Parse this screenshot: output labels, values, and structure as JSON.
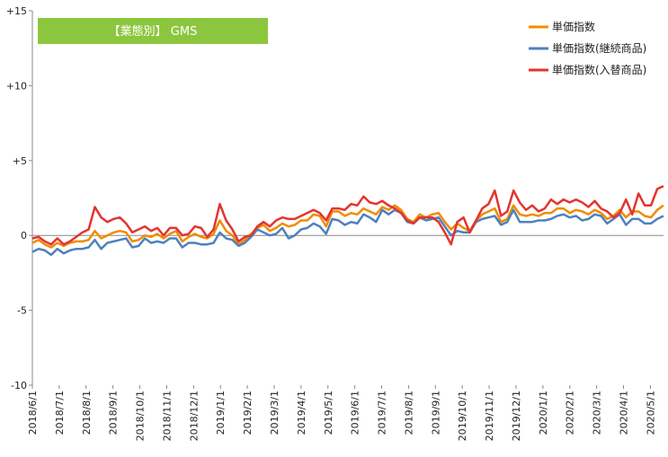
{
  "chart_data": {
    "type": "line",
    "title": "【業態別】 GMS",
    "xlabel": "",
    "ylabel": "",
    "ylim": [
      -10,
      15
    ],
    "yticks": [
      -10,
      -5,
      0,
      5,
      10,
      15
    ],
    "ytick_labels": [
      "-10",
      "-5",
      "0",
      "+5",
      "+10",
      "+15"
    ],
    "xtick_labels": [
      "2018/6/1",
      "2018/7/1",
      "2018/8/1",
      "2018/9/1",
      "2018/10/1",
      "2018/11/1",
      "2018/12/1",
      "2019/1/1",
      "2019/2/1",
      "2019/3/1",
      "2019/4/1",
      "2019/5/1",
      "2019/6/1",
      "2019/7/1",
      "2019/8/1",
      "2019/9/1",
      "2019/10/1",
      "2019/11/1",
      "2019/12/1",
      "2020/1/1",
      "2020/2/1",
      "2020/3/1",
      "2020/4/1",
      "2020/5/1"
    ],
    "points_per_month": 4.3,
    "grid": false,
    "legend_position": "top-right",
    "title_box_color": "#8cc63f",
    "series": [
      {
        "name": "単価指数",
        "color": "#f08c00",
        "values": [
          -0.5,
          -0.3,
          -0.6,
          -0.8,
          -0.5,
          -0.7,
          -0.5,
          -0.4,
          -0.4,
          -0.3,
          0.3,
          -0.2,
          0.0,
          0.2,
          0.3,
          0.2,
          -0.4,
          -0.3,
          0.0,
          -0.1,
          0.1,
          -0.2,
          0.1,
          0.3,
          -0.4,
          -0.1,
          0.1,
          -0.1,
          -0.2,
          0.1,
          1.0,
          0.3,
          0.0,
          -0.6,
          -0.3,
          0.1,
          0.5,
          0.7,
          0.3,
          0.5,
          0.8,
          0.6,
          0.7,
          1.0,
          1.0,
          1.4,
          1.3,
          0.6,
          1.6,
          1.6,
          1.3,
          1.5,
          1.4,
          1.8,
          1.6,
          1.4,
          1.9,
          1.7,
          2.0,
          1.7,
          1.1,
          0.9,
          1.4,
          1.2,
          1.4,
          1.5,
          0.9,
          0.4,
          0.8,
          0.5,
          0.3,
          1.0,
          1.4,
          1.6,
          1.8,
          0.9,
          1.1,
          2.0,
          1.4,
          1.3,
          1.4,
          1.3,
          1.5,
          1.5,
          1.8,
          1.8,
          1.5,
          1.7,
          1.6,
          1.4,
          1.7,
          1.5,
          1.1,
          1.3,
          1.7,
          1.2,
          1.6,
          1.6,
          1.3,
          1.2,
          1.7,
          2.0
        ]
      },
      {
        "name": "単価指数(継続商品)",
        "color": "#4f81bd",
        "values": [
          -1.1,
          -0.9,
          -1.0,
          -1.3,
          -0.9,
          -1.2,
          -1.0,
          -0.9,
          -0.9,
          -0.8,
          -0.3,
          -0.9,
          -0.5,
          -0.4,
          -0.3,
          -0.2,
          -0.8,
          -0.7,
          -0.2,
          -0.5,
          -0.4,
          -0.5,
          -0.2,
          -0.2,
          -0.8,
          -0.5,
          -0.5,
          -0.6,
          -0.6,
          -0.5,
          0.2,
          -0.2,
          -0.3,
          -0.7,
          -0.5,
          -0.1,
          0.4,
          0.2,
          0.0,
          0.1,
          0.5,
          -0.2,
          0.0,
          0.4,
          0.5,
          0.8,
          0.6,
          0.1,
          1.1,
          1.0,
          0.7,
          0.9,
          0.8,
          1.4,
          1.2,
          0.9,
          1.7,
          1.4,
          1.7,
          1.5,
          0.9,
          0.8,
          1.2,
          1.0,
          1.1,
          1.2,
          0.6,
          0.0,
          0.3,
          0.2,
          0.2,
          0.9,
          1.1,
          1.2,
          1.3,
          0.7,
          0.9,
          1.7,
          0.9,
          0.9,
          0.9,
          1.0,
          1.0,
          1.1,
          1.3,
          1.4,
          1.2,
          1.3,
          1.0,
          1.1,
          1.4,
          1.3,
          0.8,
          1.1,
          1.4,
          0.7,
          1.1,
          1.1,
          0.8,
          0.8,
          1.1,
          1.3
        ]
      },
      {
        "name": "単価指数(入替商品)",
        "color": "#e3342f",
        "values": [
          -0.2,
          -0.1,
          -0.4,
          -0.6,
          -0.2,
          -0.6,
          -0.4,
          -0.1,
          0.2,
          0.4,
          1.9,
          1.2,
          0.9,
          1.1,
          1.2,
          0.8,
          0.2,
          0.4,
          0.6,
          0.3,
          0.5,
          0.0,
          0.5,
          0.5,
          0.0,
          0.1,
          0.6,
          0.5,
          -0.1,
          0.4,
          2.1,
          1.0,
          0.4,
          -0.4,
          -0.1,
          0.0,
          0.6,
          0.9,
          0.6,
          1.0,
          1.2,
          1.1,
          1.1,
          1.3,
          1.5,
          1.7,
          1.5,
          1.0,
          1.8,
          1.8,
          1.7,
          2.1,
          2.0,
          2.6,
          2.2,
          2.1,
          2.3,
          2.0,
          1.8,
          1.5,
          1.0,
          0.8,
          1.2,
          1.2,
          1.2,
          0.9,
          0.2,
          -0.6,
          0.9,
          1.2,
          0.2,
          1.0,
          1.8,
          2.1,
          3.0,
          1.3,
          1.6,
          3.0,
          2.2,
          1.7,
          2.0,
          1.6,
          1.8,
          2.4,
          2.1,
          2.4,
          2.2,
          2.4,
          2.2,
          1.9,
          2.3,
          1.8,
          1.6,
          1.2,
          1.5,
          2.4,
          1.4,
          2.8,
          2.0,
          2.0,
          3.1,
          3.3
        ]
      }
    ]
  }
}
